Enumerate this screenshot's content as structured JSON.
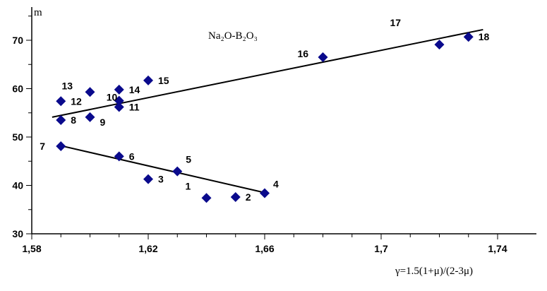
{
  "chart_data": {
    "type": "scatter",
    "title": "Na₂O-B₂O₃",
    "xlabel": "γ=1.5(1+μ)/(2-3μ)",
    "ylabel": "m",
    "xlim": [
      1.58,
      1.74
    ],
    "ylim": [
      30,
      70
    ],
    "xticks": [
      "1,58",
      "1,62",
      "1,66",
      "1,7",
      "1,74"
    ],
    "xtick_values": [
      1.58,
      1.62,
      1.66,
      1.7,
      1.74
    ],
    "yticks": [
      "30",
      "40",
      "50",
      "60",
      "70"
    ],
    "ytick_values": [
      30,
      40,
      50,
      60,
      70
    ],
    "marker_color": "#0a0a8c",
    "points": [
      {
        "label": "1",
        "x": 1.64,
        "y": 37.4
      },
      {
        "label": "2",
        "x": 1.65,
        "y": 37.6
      },
      {
        "label": "3",
        "x": 1.62,
        "y": 41.3
      },
      {
        "label": "4",
        "x": 1.66,
        "y": 38.4
      },
      {
        "label": "5",
        "x": 1.63,
        "y": 42.9
      },
      {
        "label": "6",
        "x": 1.61,
        "y": 46.0
      },
      {
        "label": "7",
        "x": 1.59,
        "y": 48.1
      },
      {
        "label": "8",
        "x": 1.59,
        "y": 53.5
      },
      {
        "label": "9",
        "x": 1.6,
        "y": 54.1
      },
      {
        "label": "10",
        "x": 1.61,
        "y": 57.5
      },
      {
        "label": "11",
        "x": 1.61,
        "y": 56.2
      },
      {
        "label": "12",
        "x": 1.59,
        "y": 57.4
      },
      {
        "label": "13",
        "x": 1.6,
        "y": 59.3
      },
      {
        "label": "14",
        "x": 1.61,
        "y": 59.8
      },
      {
        "label": "15",
        "x": 1.62,
        "y": 61.7
      },
      {
        "label": "16",
        "x": 1.68,
        "y": 66.5
      },
      {
        "label": "17",
        "x": 1.72,
        "y": 69.1
      },
      {
        "label": "18",
        "x": 1.73,
        "y": 70.7
      }
    ],
    "trend_lines": [
      {
        "name": "upper",
        "x": [
          1.587,
          1.735
        ],
        "y": [
          54.1,
          72.2
        ]
      },
      {
        "name": "lower",
        "x": [
          1.59,
          1.66
        ],
        "y": [
          48.2,
          38.5
        ]
      }
    ]
  }
}
